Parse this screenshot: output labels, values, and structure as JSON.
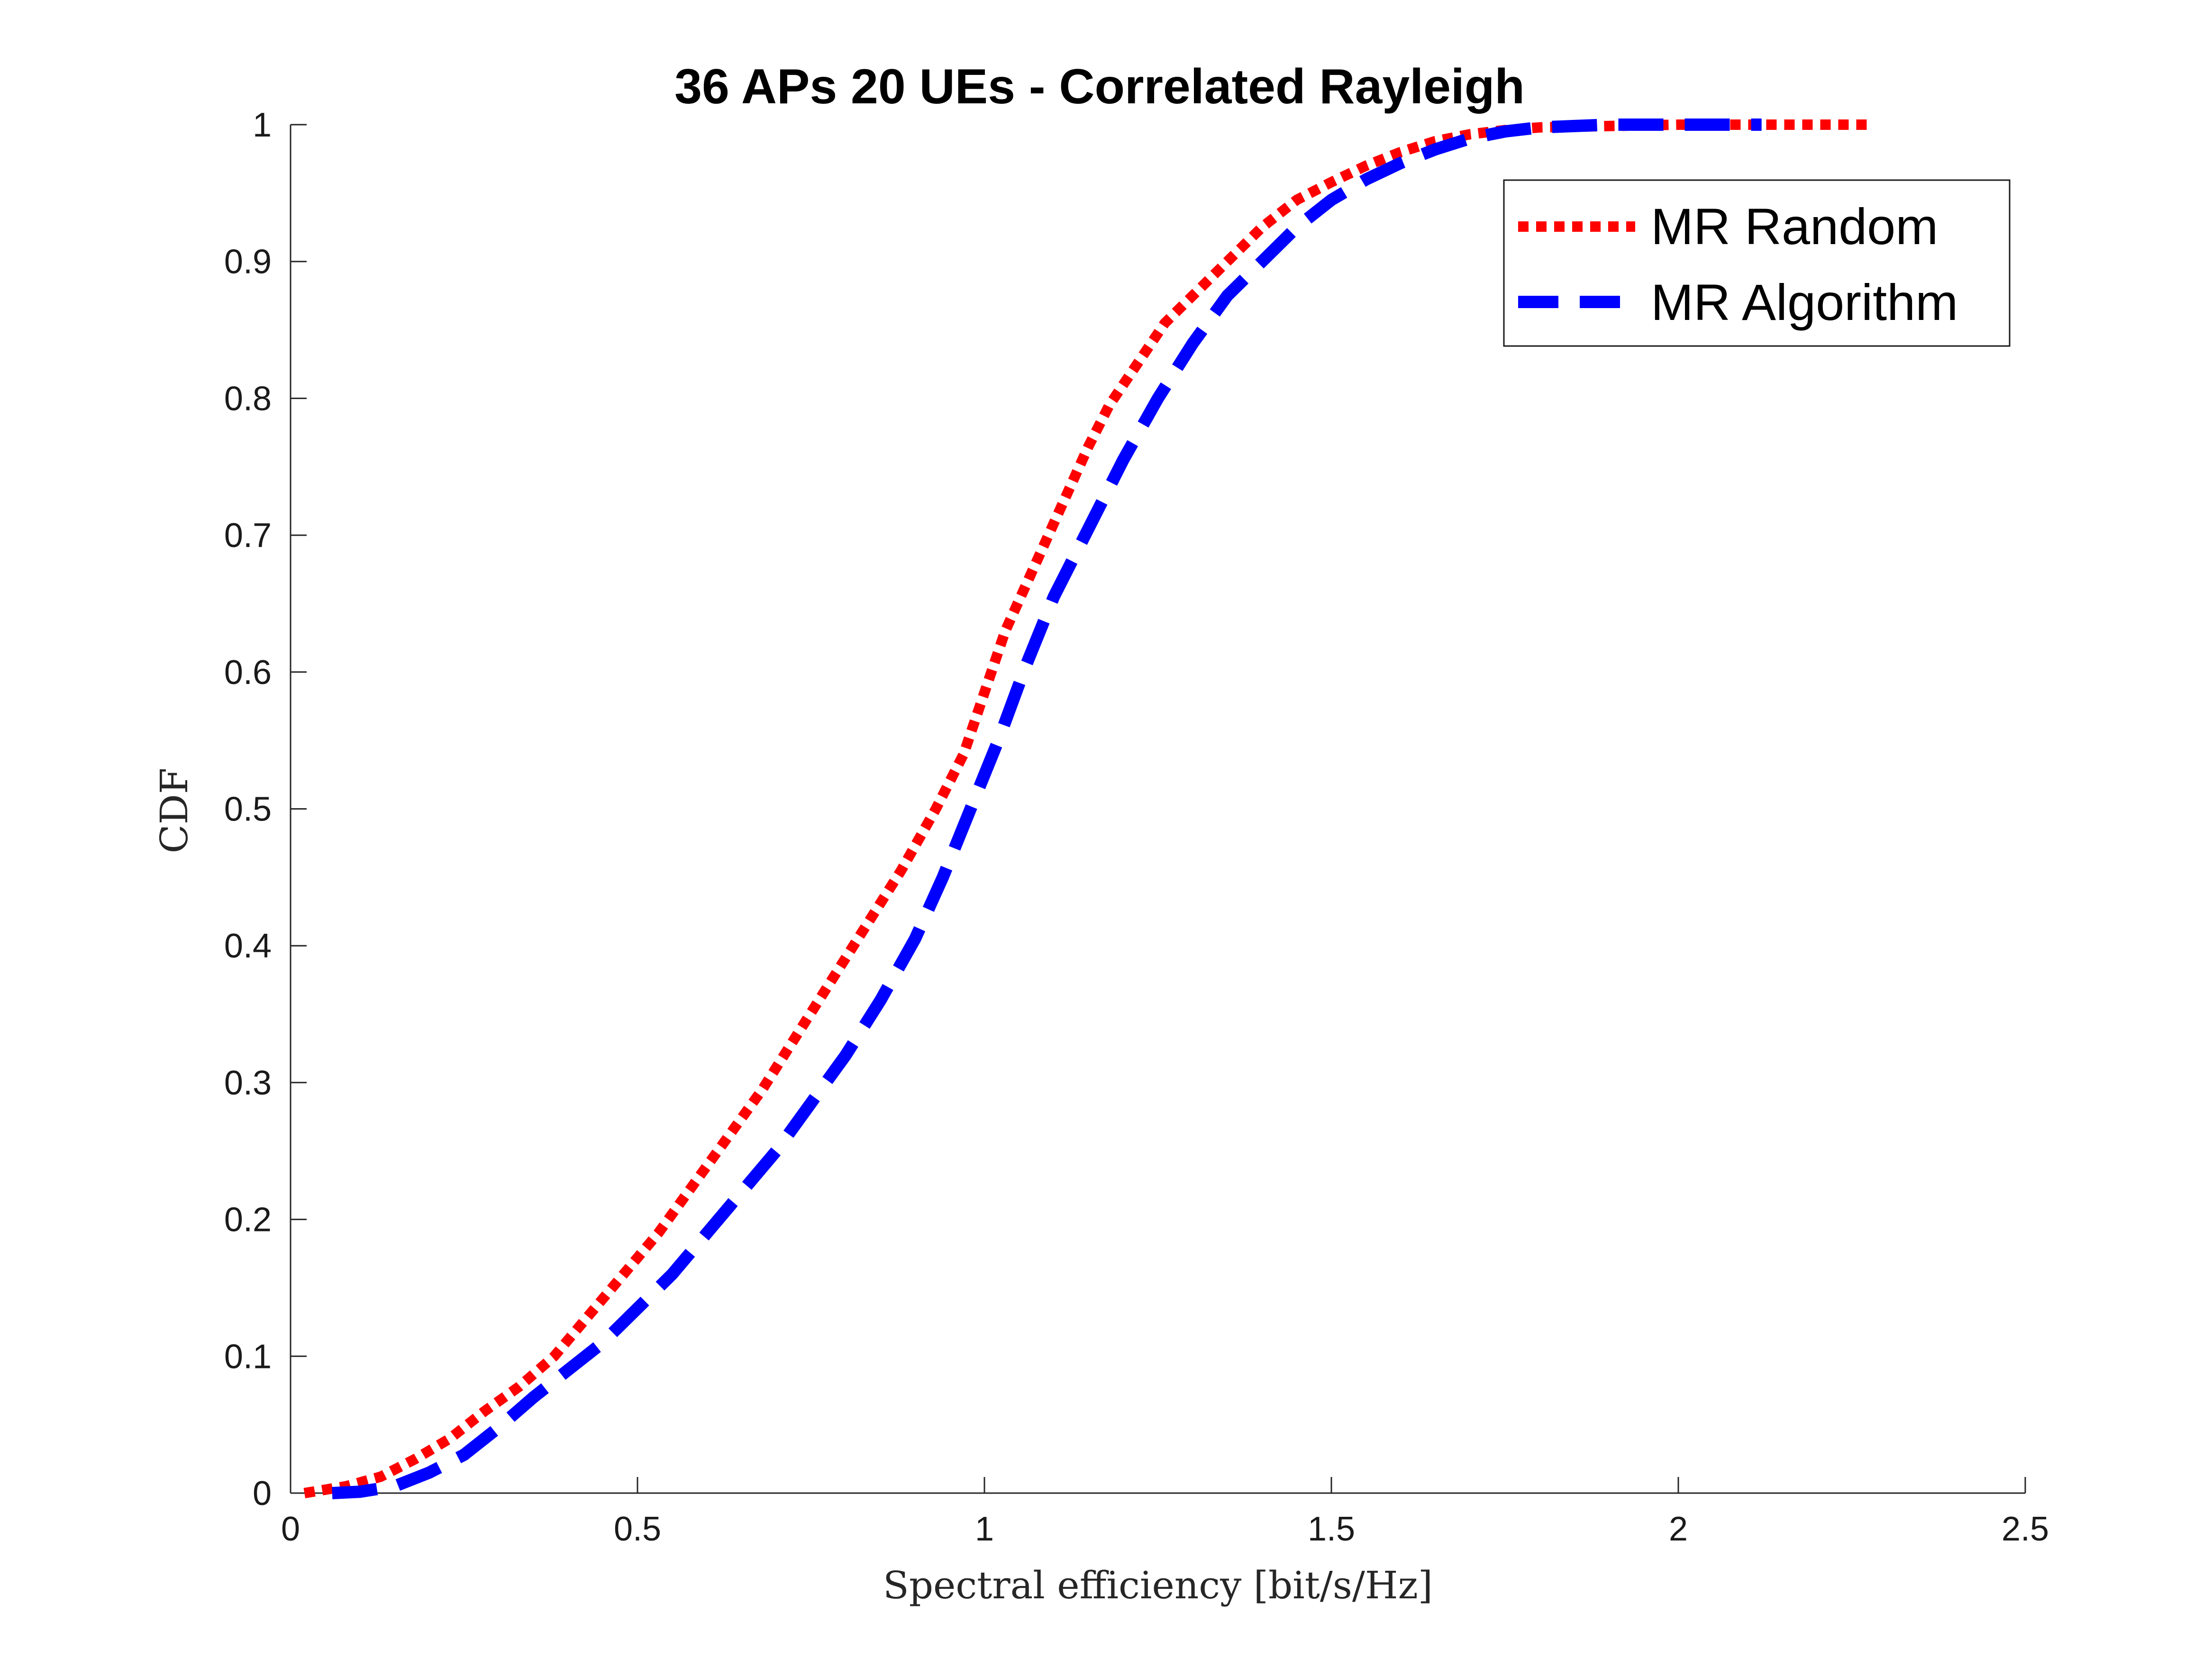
{
  "chart_data": {
    "type": "line",
    "title": "36 APs 20 UEs - Correlated Rayleigh",
    "xlabel": "Spectral efficiency [bit/s/Hz]",
    "ylabel": "CDF",
    "xlim": [
      0,
      2.5
    ],
    "ylim": [
      0,
      1
    ],
    "xticks": [
      0,
      0.5,
      1,
      1.5,
      2,
      2.5
    ],
    "xtick_labels": [
      "0",
      "0.5",
      "1",
      "1.5",
      "2",
      "2.5"
    ],
    "yticks": [
      0,
      0.1,
      0.2,
      0.3,
      0.4,
      0.5,
      0.6,
      0.7,
      0.8,
      0.9,
      1
    ],
    "ytick_labels": [
      "0",
      "0.1",
      "0.2",
      "0.3",
      "0.4",
      "0.5",
      "0.6",
      "0.7",
      "0.8",
      "0.9",
      "1"
    ],
    "grid": false,
    "legend_position": "top-right",
    "series": [
      {
        "name": "MR Random",
        "color": "#ff0000",
        "line_style": "dotted",
        "x": [
          0.02,
          0.08,
          0.13,
          0.18,
          0.23,
          0.28,
          0.33,
          0.38,
          0.43,
          0.48,
          0.53,
          0.58,
          0.63,
          0.68,
          0.73,
          0.78,
          0.83,
          0.88,
          0.93,
          0.97,
          1.0,
          1.03,
          1.07,
          1.11,
          1.15,
          1.18,
          1.22,
          1.26,
          1.3,
          1.35,
          1.4,
          1.45,
          1.5,
          1.55,
          1.6,
          1.65,
          1.7,
          1.75,
          1.8,
          1.9,
          2.0,
          2.1,
          2.28
        ],
        "y": [
          0.0,
          0.005,
          0.012,
          0.025,
          0.04,
          0.06,
          0.078,
          0.1,
          0.13,
          0.16,
          0.19,
          0.225,
          0.26,
          0.295,
          0.335,
          0.375,
          0.415,
          0.455,
          0.5,
          0.54,
          0.585,
          0.63,
          0.675,
          0.72,
          0.765,
          0.795,
          0.825,
          0.855,
          0.875,
          0.9,
          0.925,
          0.945,
          0.958,
          0.97,
          0.98,
          0.988,
          0.993,
          0.996,
          0.998,
          0.999,
          1.0,
          1.0,
          1.0
        ]
      },
      {
        "name": "MR Algorithm",
        "color": "#0000ff",
        "line_style": "dashed",
        "x": [
          0.06,
          0.1,
          0.15,
          0.2,
          0.25,
          0.3,
          0.35,
          0.4,
          0.45,
          0.5,
          0.55,
          0.6,
          0.65,
          0.7,
          0.75,
          0.8,
          0.85,
          0.9,
          0.94,
          0.98,
          1.02,
          1.06,
          1.1,
          1.15,
          1.2,
          1.25,
          1.3,
          1.35,
          1.4,
          1.45,
          1.5,
          1.55,
          1.6,
          1.65,
          1.7,
          1.75,
          1.8,
          1.85,
          1.9,
          2.0,
          2.12
        ],
        "y": [
          0.0,
          0.001,
          0.005,
          0.015,
          0.028,
          0.048,
          0.07,
          0.09,
          0.11,
          0.135,
          0.16,
          0.19,
          0.22,
          0.25,
          0.285,
          0.32,
          0.36,
          0.405,
          0.45,
          0.5,
          0.55,
          0.605,
          0.655,
          0.705,
          0.755,
          0.8,
          0.84,
          0.875,
          0.9,
          0.925,
          0.945,
          0.96,
          0.972,
          0.982,
          0.99,
          0.995,
          0.998,
          0.999,
          1.0,
          1.0,
          1.0
        ]
      }
    ]
  }
}
